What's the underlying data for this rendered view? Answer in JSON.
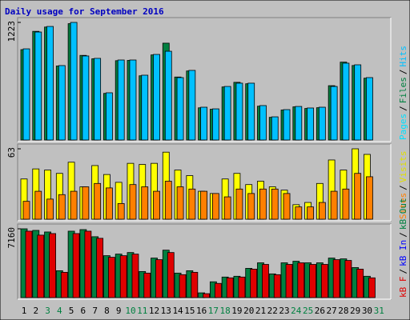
{
  "chart_data": [
    {
      "type": "bar",
      "title": "Daily usage for September 2016",
      "ylim": [
        0,
        1223
      ],
      "yticks": [
        1223
      ],
      "legend_separator": "/",
      "series": [
        {
          "name": "Pages",
          "color": "#00e0ff",
          "values": [
            0,
            0,
            0,
            0,
            0,
            0,
            0,
            0,
            0,
            0,
            0,
            0,
            0,
            0,
            0,
            0,
            0,
            0,
            0,
            0,
            0,
            0,
            0,
            0,
            0,
            0,
            0,
            0,
            0,
            0,
            null
          ]
        },
        {
          "name": "Files",
          "color": "#008040",
          "values": [
            940,
            1130,
            1175,
            770,
            1210,
            880,
            845,
            485,
            825,
            828,
            668,
            885,
            1007,
            655,
            718,
            335,
            320,
            552,
            600,
            585,
            352,
            236,
            312,
            345,
            328,
            336,
            565,
            810,
            775,
            643,
            null
          ]
        },
        {
          "name": "Hits",
          "color": "#00c0ff",
          "values": [
            948,
            1123,
            1181,
            774,
            1223,
            874,
            849,
            491,
            832,
            832,
            674,
            890,
            923,
            649,
            724,
            341,
            324,
            557,
            591,
            591,
            358,
            241,
            316,
            349,
            333,
            341,
            557,
            799,
            782,
            649,
            null
          ]
        }
      ]
    },
    {
      "type": "bar",
      "ylim": [
        0,
        63
      ],
      "yticks": [
        63
      ],
      "legend_separator": "/",
      "series": [
        {
          "name": "Sites",
          "color": "#ff8000",
          "values": [
            16,
            25,
            18,
            22,
            25,
            29,
            32,
            28,
            14,
            31,
            29,
            25,
            34,
            29,
            27,
            25,
            23,
            20,
            27,
            23,
            27,
            27,
            23,
            11,
            11,
            15,
            25,
            27,
            41,
            38,
            null
          ]
        },
        {
          "name": "Visits",
          "color": "#ffff00",
          "values": [
            36,
            45,
            44,
            41,
            51,
            29,
            48,
            40,
            33,
            50,
            49,
            50,
            60,
            44,
            39,
            25,
            23,
            36,
            41,
            31,
            34,
            29,
            26,
            13,
            15,
            32,
            53,
            44,
            63,
            58,
            null
          ]
        }
      ]
    },
    {
      "type": "bar",
      "ylim": [
        0,
        7160
      ],
      "yticks": [
        7160
      ],
      "legend_separator": "/",
      "categories": [
        "1",
        "2",
        "3",
        "4",
        "5",
        "6",
        "7",
        "8",
        "9",
        "10",
        "11",
        "12",
        "13",
        "14",
        "15",
        "16",
        "17",
        "18",
        "19",
        "20",
        "21",
        "22",
        "23",
        "24",
        "25",
        "26",
        "27",
        "28",
        "29",
        "30",
        "31"
      ],
      "category_colors": [
        "#000000",
        "#000000",
        "#008040",
        "#008040",
        "#000000",
        "#000000",
        "#000000",
        "#000000",
        "#000000",
        "#008040",
        "#008040",
        "#000000",
        "#000000",
        "#000000",
        "#000000",
        "#000000",
        "#008040",
        "#008040",
        "#000000",
        "#000000",
        "#000000",
        "#000000",
        "#000000",
        "#008040",
        "#008040",
        "#000000",
        "#000000",
        "#000000",
        "#000000",
        "#000000",
        "#008040"
      ],
      "series": [
        {
          "name": "kB F",
          "color": "#e00000",
          "values": [
            6913,
            6502,
            6666,
            2633,
            6666,
            6913,
            6172,
            4197,
            4362,
            4527,
            2551,
            3950,
            4691,
            2386,
            2633,
            412,
            1481,
            2057,
            2140,
            2963,
            3456,
            2386,
            3456,
            3621,
            3456,
            3456,
            3950,
            3868,
            2963,
            2057,
            null
          ]
        },
        {
          "name": "kB In",
          "color": "#0000ff",
          "values": [
            0,
            0,
            0,
            0,
            0,
            0,
            0,
            0,
            0,
            0,
            0,
            0,
            0,
            0,
            0,
            0,
            0,
            0,
            0,
            0,
            0,
            0,
            0,
            0,
            0,
            0,
            0,
            0,
            0,
            0,
            null
          ]
        },
        {
          "name": "kB Out",
          "color": "#008040",
          "values": [
            7160,
            6995,
            6830,
            2798,
            6913,
            7078,
            6337,
            4362,
            4527,
            4691,
            2716,
            4115,
            4938,
            2551,
            2798,
            494,
            1646,
            2140,
            2222,
            3045,
            3621,
            2469,
            3621,
            3786,
            3621,
            3621,
            4115,
            4033,
            3127,
            2222,
            null
          ]
        }
      ]
    }
  ]
}
